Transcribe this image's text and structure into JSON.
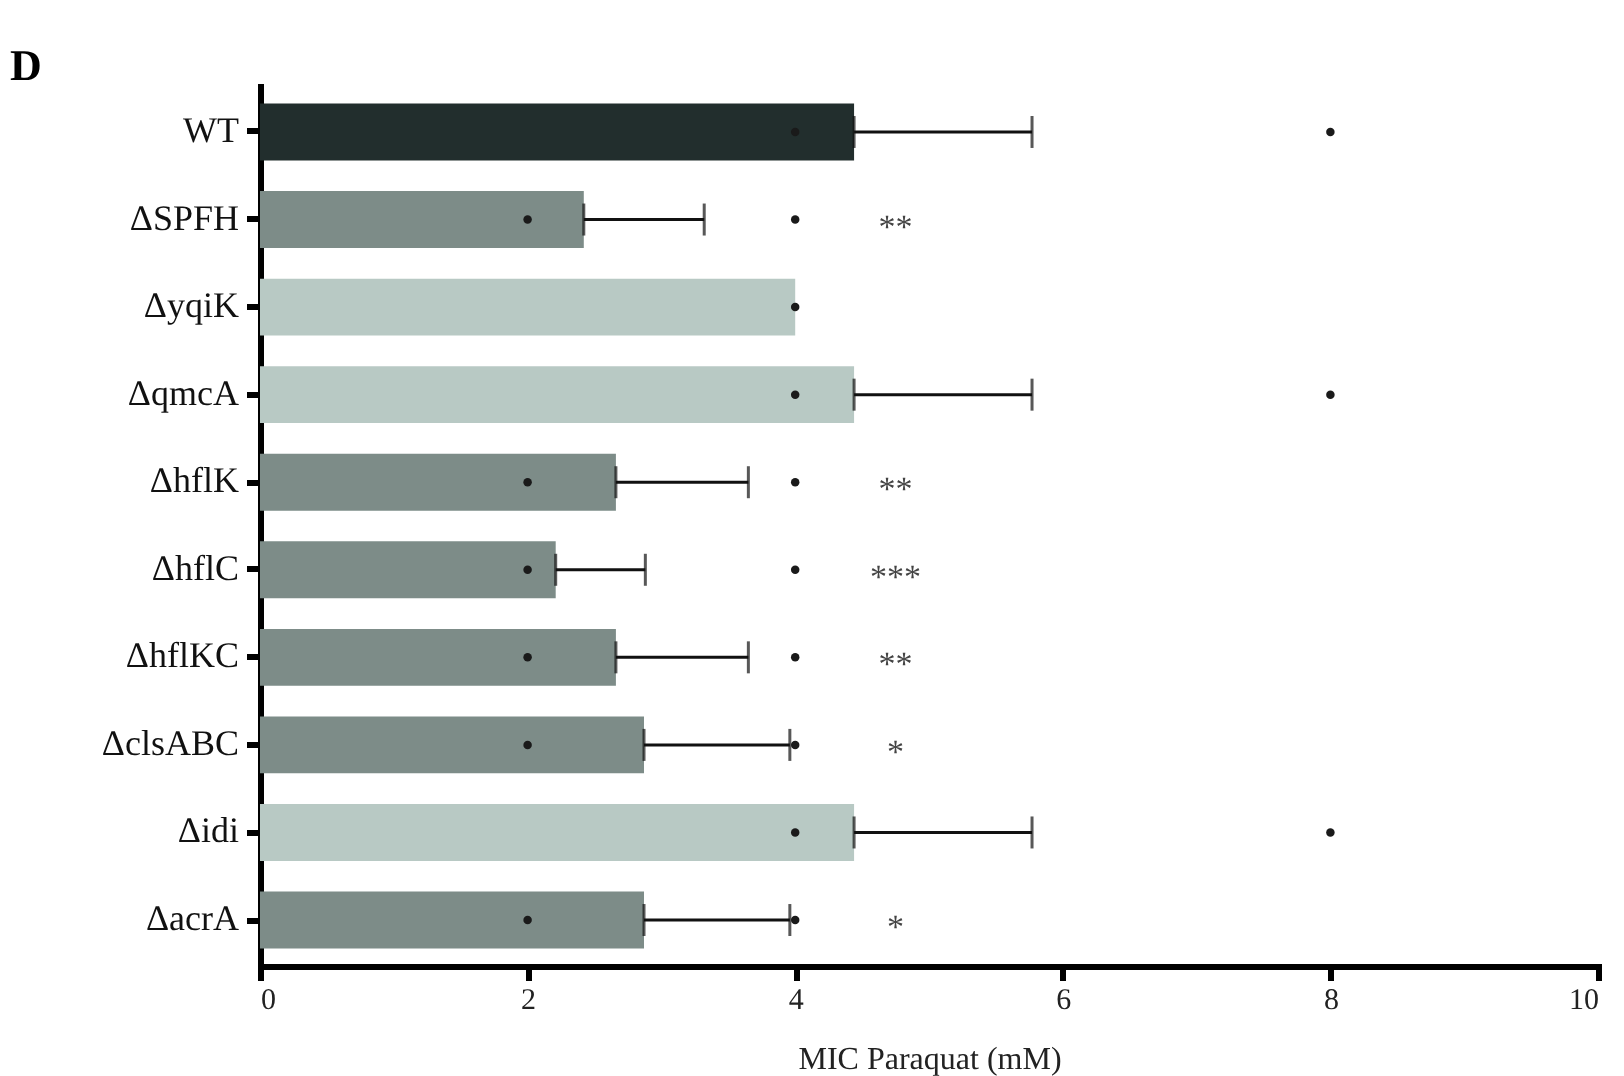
{
  "chart_data": {
    "type": "bar",
    "orientation": "horizontal",
    "xlabel": "MIC Paraquat (mM)",
    "categories": [
      "WT",
      "ΔSPFH",
      "ΔyqiK",
      "ΔqmcA",
      "ΔhflK",
      "ΔhflC",
      "ΔhflKC",
      "ΔclsABC",
      "Δidi",
      "ΔacrA"
    ],
    "series": [
      {
        "type": "bar",
        "colors": [
          "#222e2d",
          "#7d8c88",
          "#b8c9c4",
          "#b8c9c4",
          "#7d8c88",
          "#7d8c88",
          "#7d8c88",
          "#7d8c88",
          "#b8c9c4",
          "#7d8c88"
        ],
        "values": [
          4.44,
          2.42,
          4.0,
          4.44,
          2.66,
          2.21,
          2.66,
          2.87,
          4.44,
          2.87
        ],
        "value_labels": [
          null,
          "**",
          null,
          null,
          "**",
          "***",
          "**",
          "*",
          null,
          "*"
        ],
        "errors": [
          [
            4.44,
            5.77
          ],
          [
            2.42,
            3.32
          ],
          null,
          [
            4.44,
            5.77
          ],
          [
            2.66,
            3.65
          ],
          [
            2.21,
            2.88
          ],
          [
            2.66,
            3.65
          ],
          [
            2.87,
            3.96
          ],
          [
            4.44,
            5.77
          ],
          [
            2.87,
            3.96
          ]
        ]
      },
      {
        "type": "scatter",
        "color": "#1a1a1a",
        "x": [
          "WT",
          "WT",
          "ΔSPFH",
          "ΔSPFH",
          "ΔyqiK",
          "ΔqmcA",
          "ΔqmcA",
          "ΔhflK",
          "ΔhflK",
          "ΔhflC",
          "ΔhflC",
          "ΔhflKC",
          "ΔhflKC",
          "ΔclsABC",
          "ΔclsABC",
          "Δidi",
          "Δidi",
          "ΔacrA",
          "ΔacrA"
        ],
        "values": [
          4,
          8,
          2,
          4,
          4,
          4,
          8,
          2,
          4,
          2,
          4,
          2,
          4,
          2,
          4,
          4,
          8,
          2,
          4
        ]
      }
    ],
    "xlim": [
      0,
      10
    ],
    "xticks": [
      0,
      2,
      4,
      6,
      8,
      10
    ],
    "grid": false,
    "annotations": [
      "D"
    ]
  }
}
